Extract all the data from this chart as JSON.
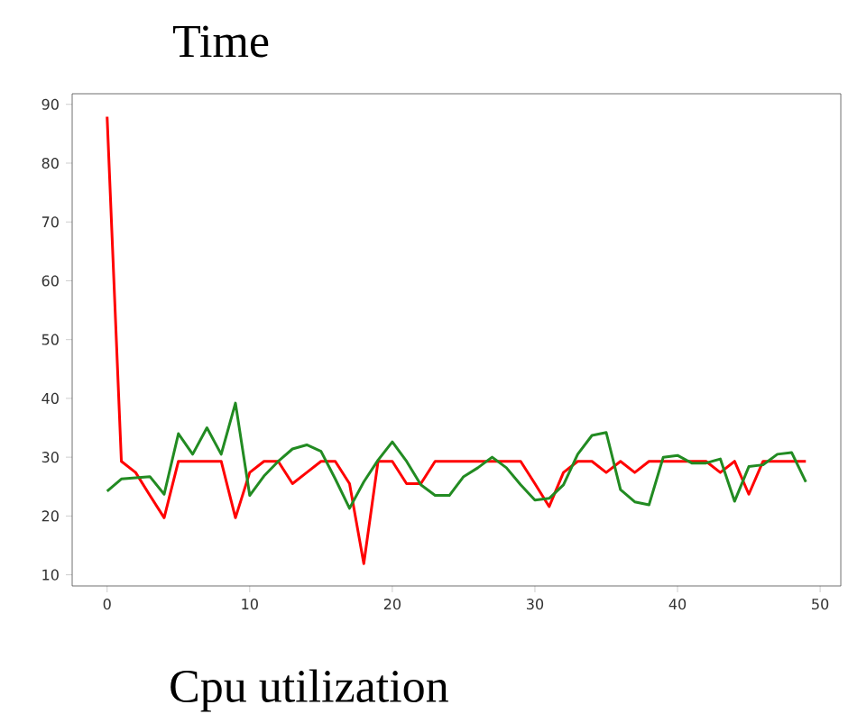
{
  "chart_data": {
    "type": "line",
    "title": "Time",
    "xlabel": "Cpu utilization",
    "x": [
      0,
      1,
      2,
      3,
      4,
      5,
      6,
      7,
      8,
      9,
      10,
      11,
      12,
      13,
      14,
      15,
      16,
      17,
      18,
      19,
      20,
      21,
      22,
      23,
      24,
      25,
      26,
      27,
      28,
      29,
      30,
      31,
      32,
      33,
      34,
      35,
      36,
      37,
      38,
      39,
      40,
      41,
      42,
      43,
      44,
      45,
      46,
      47,
      48,
      49
    ],
    "series": [
      {
        "color": "#ff0000",
        "values": [
          87.9,
          29.3,
          27.4,
          23.5,
          19.7,
          29.3,
          29.3,
          29.3,
          29.3,
          19.7,
          27.4,
          29.3,
          29.3,
          25.5,
          27.4,
          29.3,
          29.3,
          25.5,
          11.9,
          29.3,
          29.3,
          25.5,
          25.5,
          29.3,
          29.3,
          29.3,
          29.3,
          29.3,
          29.3,
          29.3,
          25.5,
          21.6,
          27.4,
          29.3,
          29.3,
          27.4,
          29.3,
          27.4,
          29.3,
          29.3,
          29.3,
          29.3,
          29.3,
          27.4,
          29.3,
          23.7,
          29.3,
          29.3,
          29.3,
          29.3
        ]
      },
      {
        "color": "#228b22",
        "values": [
          24.2,
          26.3,
          26.5,
          26.7,
          23.7,
          34,
          30.5,
          35,
          30.5,
          39.2,
          23.5,
          26.8,
          29.3,
          31.4,
          32.1,
          31,
          26.3,
          21.3,
          25.8,
          29.5,
          32.6,
          29.3,
          25.3,
          23.5,
          23.5,
          26.7,
          28.2,
          30,
          28.2,
          25.3,
          22.7,
          23,
          25.3,
          30.5,
          33.7,
          34.2,
          24.5,
          22.4,
          21.9,
          30,
          30.3,
          29,
          29,
          29.7,
          22.5,
          28.4,
          28.7,
          30.5,
          30.8,
          25.8
        ]
      }
    ],
    "xlim": [
      -2.45,
      51.45
    ],
    "ylim": [
      8.1,
      91.8
    ],
    "xticks": [
      0,
      10,
      20,
      30,
      40,
      50
    ],
    "yticks": [
      10,
      20,
      30,
      40,
      50,
      60,
      70,
      80,
      90
    ],
    "grid": false,
    "marker": "none",
    "line_style": "solid"
  }
}
